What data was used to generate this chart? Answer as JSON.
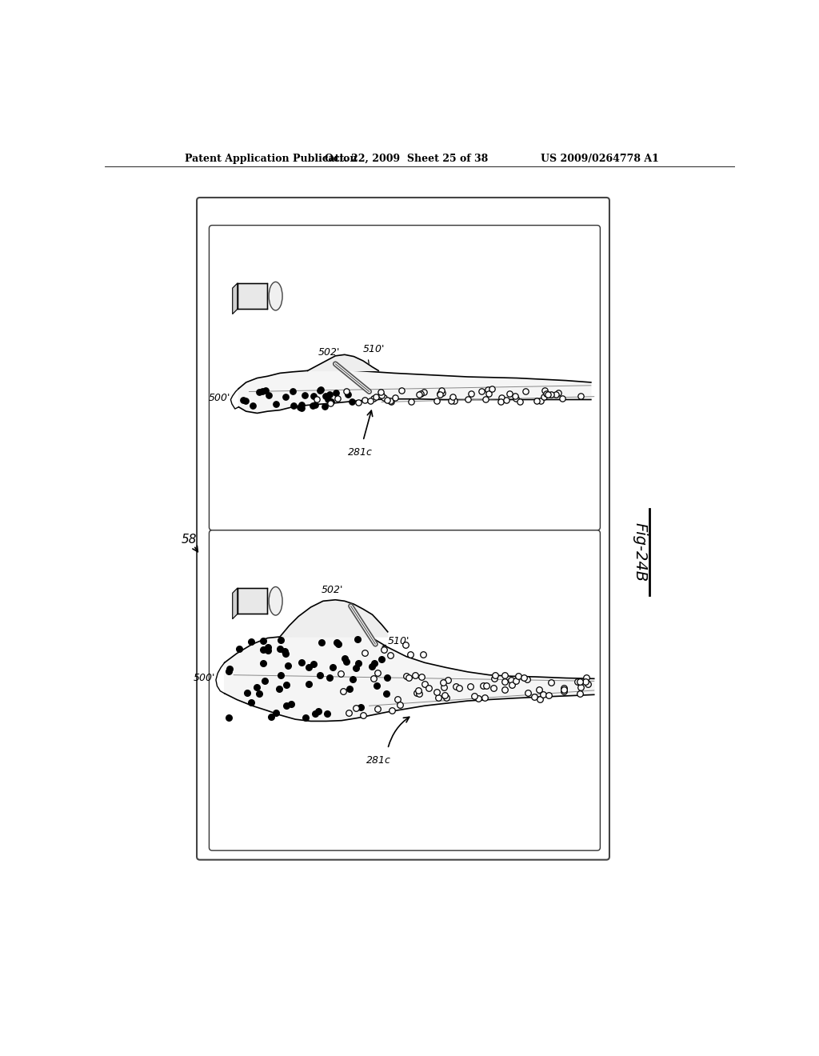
{
  "background_color": "#ffffff",
  "header_text_left": "Patent Application Publication",
  "header_text_mid": "Oct. 22, 2009  Sheet 25 of 38",
  "header_text_right": "US 2009/0264778 A1",
  "fig_label": "Fig-24B",
  "label_58": "58"
}
